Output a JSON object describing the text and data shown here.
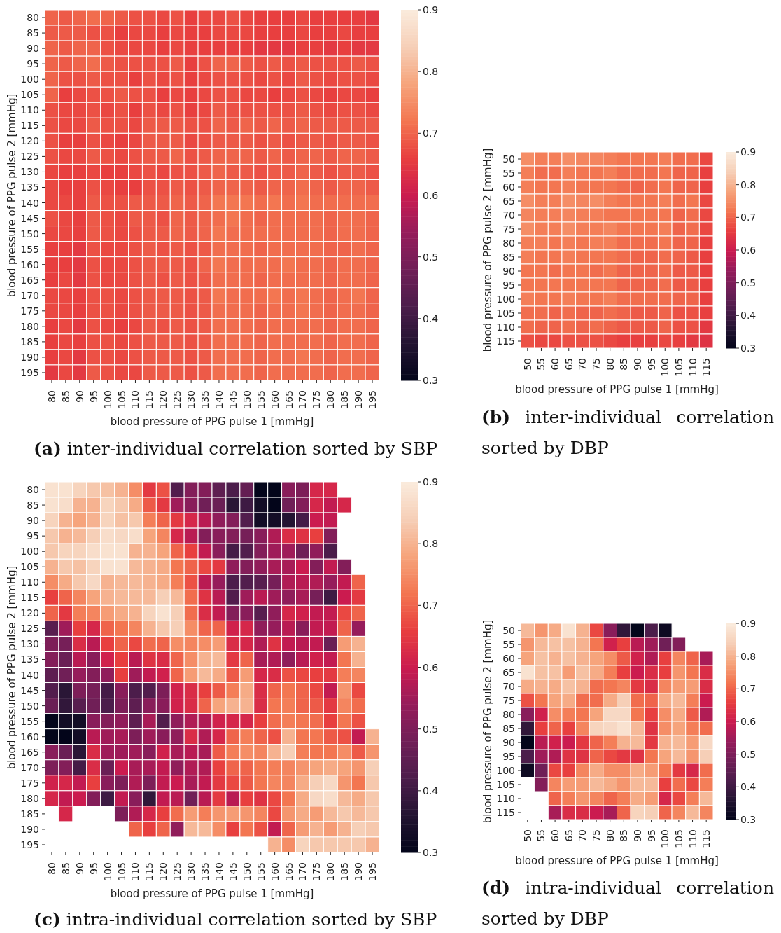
{
  "chart_data": [
    {
      "type": "heatmap",
      "title": "(a) inter-individual correlation sorted by SBP",
      "xlabel": "blood pressure of PPG pulse 1 [mmHg]",
      "ylabel": "blood pressure of PPG pulse 2 [mmHg]",
      "clim": [
        0.3,
        0.9
      ],
      "cticks": [
        0.3,
        0.4,
        0.5,
        0.6,
        0.7,
        0.8,
        0.9
      ],
      "categories": [
        "80",
        "85",
        "90",
        "95",
        "100",
        "105",
        "110",
        "115",
        "120",
        "125",
        "130",
        "135",
        "140",
        "145",
        "150",
        "155",
        "160",
        "165",
        "170",
        "175",
        "180",
        "185",
        "190",
        "195"
      ],
      "y_categories": [
        "80",
        "85",
        "90",
        "95",
        "100",
        "105",
        "110",
        "115",
        "120",
        "125",
        "130",
        "135",
        "140",
        "145",
        "150",
        "155",
        "160",
        "165",
        "170",
        "175",
        "180",
        "185",
        "190",
        "195"
      ],
      "cells": [
        [
          0.7,
          0.69,
          0.7,
          0.71,
          0.7,
          0.69,
          0.68,
          0.68,
          0.67,
          0.68,
          0.66,
          0.67,
          0.67,
          0.68,
          0.67,
          0.66,
          0.66,
          0.66,
          0.67,
          0.66,
          0.66,
          0.66,
          0.66,
          0.65
        ],
        [
          0.69,
          0.69,
          0.69,
          0.68,
          0.68,
          0.66,
          0.67,
          0.67,
          0.66,
          0.67,
          0.66,
          0.66,
          0.67,
          0.67,
          0.67,
          0.66,
          0.66,
          0.66,
          0.67,
          0.66,
          0.66,
          0.67,
          0.66,
          0.66
        ],
        [
          0.7,
          0.69,
          0.7,
          0.7,
          0.68,
          0.67,
          0.67,
          0.67,
          0.66,
          0.67,
          0.66,
          0.66,
          0.66,
          0.66,
          0.66,
          0.65,
          0.65,
          0.65,
          0.66,
          0.66,
          0.65,
          0.66,
          0.65,
          0.65
        ],
        [
          0.7,
          0.69,
          0.7,
          0.71,
          0.69,
          0.68,
          0.68,
          0.68,
          0.68,
          0.69,
          0.66,
          0.68,
          0.7,
          0.7,
          0.69,
          0.68,
          0.69,
          0.68,
          0.69,
          0.68,
          0.68,
          0.68,
          0.69,
          0.68
        ],
        [
          0.7,
          0.68,
          0.68,
          0.69,
          0.68,
          0.68,
          0.66,
          0.68,
          0.67,
          0.68,
          0.66,
          0.67,
          0.68,
          0.68,
          0.68,
          0.67,
          0.68,
          0.67,
          0.69,
          0.68,
          0.67,
          0.68,
          0.68,
          0.67
        ],
        [
          0.7,
          0.66,
          0.67,
          0.68,
          0.68,
          0.69,
          0.68,
          0.68,
          0.66,
          0.67,
          0.66,
          0.67,
          0.68,
          0.68,
          0.67,
          0.67,
          0.66,
          0.67,
          0.68,
          0.67,
          0.66,
          0.67,
          0.67,
          0.66
        ],
        [
          0.68,
          0.67,
          0.67,
          0.68,
          0.67,
          0.68,
          0.66,
          0.68,
          0.67,
          0.68,
          0.66,
          0.67,
          0.69,
          0.68,
          0.68,
          0.68,
          0.68,
          0.68,
          0.69,
          0.68,
          0.67,
          0.68,
          0.68,
          0.67
        ],
        [
          0.68,
          0.67,
          0.67,
          0.69,
          0.68,
          0.68,
          0.67,
          0.69,
          0.69,
          0.69,
          0.68,
          0.68,
          0.7,
          0.69,
          0.7,
          0.69,
          0.7,
          0.69,
          0.7,
          0.69,
          0.69,
          0.69,
          0.69,
          0.69
        ],
        [
          0.68,
          0.66,
          0.66,
          0.68,
          0.67,
          0.66,
          0.67,
          0.69,
          0.69,
          0.69,
          0.67,
          0.68,
          0.69,
          0.69,
          0.69,
          0.68,
          0.69,
          0.68,
          0.69,
          0.69,
          0.68,
          0.69,
          0.69,
          0.68
        ],
        [
          0.68,
          0.67,
          0.67,
          0.69,
          0.68,
          0.67,
          0.68,
          0.69,
          0.69,
          0.7,
          0.68,
          0.69,
          0.7,
          0.7,
          0.7,
          0.69,
          0.7,
          0.69,
          0.7,
          0.7,
          0.69,
          0.7,
          0.7,
          0.69
        ],
        [
          0.67,
          0.66,
          0.66,
          0.67,
          0.66,
          0.66,
          0.67,
          0.68,
          0.67,
          0.68,
          0.68,
          0.69,
          0.7,
          0.69,
          0.69,
          0.68,
          0.69,
          0.69,
          0.7,
          0.69,
          0.68,
          0.69,
          0.69,
          0.68
        ],
        [
          0.67,
          0.66,
          0.66,
          0.68,
          0.67,
          0.66,
          0.66,
          0.68,
          0.68,
          0.69,
          0.68,
          0.69,
          0.7,
          0.7,
          0.7,
          0.69,
          0.7,
          0.7,
          0.71,
          0.7,
          0.69,
          0.7,
          0.7,
          0.69
        ],
        [
          0.67,
          0.67,
          0.66,
          0.69,
          0.68,
          0.68,
          0.69,
          0.69,
          0.69,
          0.7,
          0.69,
          0.7,
          0.72,
          0.72,
          0.72,
          0.71,
          0.72,
          0.71,
          0.72,
          0.71,
          0.71,
          0.71,
          0.71,
          0.71
        ],
        [
          0.68,
          0.67,
          0.66,
          0.69,
          0.68,
          0.67,
          0.69,
          0.69,
          0.68,
          0.7,
          0.69,
          0.7,
          0.71,
          0.72,
          0.71,
          0.7,
          0.71,
          0.71,
          0.71,
          0.71,
          0.7,
          0.71,
          0.71,
          0.7
        ],
        [
          0.67,
          0.67,
          0.66,
          0.69,
          0.68,
          0.67,
          0.68,
          0.69,
          0.69,
          0.7,
          0.69,
          0.7,
          0.72,
          0.71,
          0.71,
          0.71,
          0.71,
          0.71,
          0.71,
          0.71,
          0.7,
          0.71,
          0.71,
          0.7
        ],
        [
          0.66,
          0.66,
          0.65,
          0.68,
          0.67,
          0.67,
          0.68,
          0.69,
          0.68,
          0.69,
          0.68,
          0.69,
          0.71,
          0.71,
          0.71,
          0.7,
          0.71,
          0.71,
          0.71,
          0.71,
          0.7,
          0.7,
          0.71,
          0.7
        ],
        [
          0.66,
          0.66,
          0.65,
          0.68,
          0.67,
          0.67,
          0.68,
          0.69,
          0.69,
          0.69,
          0.68,
          0.7,
          0.72,
          0.71,
          0.71,
          0.71,
          0.71,
          0.72,
          0.71,
          0.71,
          0.7,
          0.71,
          0.71,
          0.7
        ],
        [
          0.66,
          0.67,
          0.65,
          0.68,
          0.67,
          0.67,
          0.68,
          0.69,
          0.68,
          0.69,
          0.68,
          0.69,
          0.71,
          0.71,
          0.71,
          0.7,
          0.71,
          0.71,
          0.71,
          0.71,
          0.7,
          0.71,
          0.71,
          0.7
        ],
        [
          0.67,
          0.67,
          0.66,
          0.68,
          0.68,
          0.67,
          0.68,
          0.69,
          0.69,
          0.69,
          0.68,
          0.69,
          0.72,
          0.71,
          0.71,
          0.71,
          0.72,
          0.71,
          0.72,
          0.71,
          0.7,
          0.71,
          0.72,
          0.7
        ],
        [
          0.67,
          0.67,
          0.66,
          0.68,
          0.68,
          0.67,
          0.68,
          0.69,
          0.69,
          0.69,
          0.68,
          0.69,
          0.71,
          0.71,
          0.71,
          0.7,
          0.71,
          0.71,
          0.72,
          0.71,
          0.7,
          0.71,
          0.71,
          0.7
        ],
        [
          0.66,
          0.67,
          0.65,
          0.68,
          0.67,
          0.66,
          0.67,
          0.69,
          0.68,
          0.69,
          0.68,
          0.69,
          0.71,
          0.71,
          0.71,
          0.7,
          0.71,
          0.71,
          0.71,
          0.71,
          0.7,
          0.71,
          0.71,
          0.7
        ],
        [
          0.66,
          0.67,
          0.66,
          0.68,
          0.68,
          0.67,
          0.68,
          0.69,
          0.69,
          0.69,
          0.68,
          0.69,
          0.71,
          0.71,
          0.71,
          0.7,
          0.71,
          0.71,
          0.71,
          0.71,
          0.7,
          0.71,
          0.71,
          0.7
        ],
        [
          0.66,
          0.67,
          0.65,
          0.68,
          0.68,
          0.67,
          0.68,
          0.69,
          0.69,
          0.69,
          0.68,
          0.69,
          0.71,
          0.71,
          0.71,
          0.7,
          0.71,
          0.71,
          0.72,
          0.71,
          0.7,
          0.71,
          0.71,
          0.7
        ],
        [
          0.65,
          0.67,
          0.65,
          0.69,
          0.68,
          0.67,
          0.67,
          0.69,
          0.69,
          0.69,
          0.68,
          0.69,
          0.71,
          0.71,
          0.71,
          0.7,
          0.71,
          0.71,
          0.71,
          0.71,
          0.7,
          0.71,
          0.71,
          0.7
        ]
      ]
    },
    {
      "type": "heatmap",
      "title": "(b) inter-individual correlation sorted by DBP",
      "xlabel": "blood pressure of PPG pulse 1 [mmHg]",
      "ylabel": "blood pressure of PPG pulse 2 [mmHg]",
      "clim": [
        0.3,
        0.9
      ],
      "cticks": [
        0.3,
        0.4,
        0.5,
        0.6,
        0.7,
        0.8,
        0.9
      ],
      "categories": [
        "50",
        "55",
        "60",
        "65",
        "70",
        "75",
        "80",
        "85",
        "90",
        "95",
        "100",
        "105",
        "110",
        "115"
      ],
      "y_categories": [
        "50",
        "55",
        "60",
        "65",
        "70",
        "75",
        "80",
        "85",
        "90",
        "95",
        "100",
        "105",
        "110",
        "115"
      ],
      "cells": [
        [
          0.75,
          0.73,
          0.73,
          0.75,
          0.74,
          0.74,
          0.73,
          0.72,
          0.72,
          0.72,
          0.73,
          0.71,
          0.71,
          0.67
        ],
        [
          0.73,
          0.71,
          0.71,
          0.73,
          0.72,
          0.72,
          0.73,
          0.71,
          0.71,
          0.71,
          0.72,
          0.7,
          0.7,
          0.66
        ],
        [
          0.73,
          0.72,
          0.72,
          0.73,
          0.72,
          0.72,
          0.72,
          0.71,
          0.7,
          0.71,
          0.72,
          0.7,
          0.7,
          0.66
        ],
        [
          0.75,
          0.73,
          0.73,
          0.75,
          0.74,
          0.75,
          0.73,
          0.72,
          0.72,
          0.72,
          0.73,
          0.71,
          0.72,
          0.67
        ],
        [
          0.74,
          0.73,
          0.73,
          0.74,
          0.73,
          0.73,
          0.72,
          0.72,
          0.72,
          0.72,
          0.72,
          0.7,
          0.71,
          0.67
        ],
        [
          0.75,
          0.73,
          0.73,
          0.75,
          0.73,
          0.73,
          0.74,
          0.72,
          0.72,
          0.72,
          0.73,
          0.7,
          0.71,
          0.67
        ],
        [
          0.73,
          0.73,
          0.72,
          0.73,
          0.72,
          0.73,
          0.73,
          0.71,
          0.71,
          0.71,
          0.72,
          0.7,
          0.7,
          0.66
        ],
        [
          0.73,
          0.72,
          0.72,
          0.73,
          0.72,
          0.72,
          0.72,
          0.71,
          0.7,
          0.7,
          0.71,
          0.7,
          0.69,
          0.66
        ],
        [
          0.72,
          0.72,
          0.71,
          0.72,
          0.72,
          0.71,
          0.72,
          0.7,
          0.7,
          0.7,
          0.71,
          0.69,
          0.69,
          0.66
        ],
        [
          0.72,
          0.72,
          0.72,
          0.72,
          0.72,
          0.72,
          0.72,
          0.7,
          0.7,
          0.7,
          0.71,
          0.69,
          0.69,
          0.66
        ],
        [
          0.73,
          0.72,
          0.72,
          0.73,
          0.72,
          0.72,
          0.73,
          0.71,
          0.71,
          0.71,
          0.71,
          0.7,
          0.7,
          0.66
        ],
        [
          0.71,
          0.71,
          0.7,
          0.71,
          0.7,
          0.7,
          0.71,
          0.7,
          0.69,
          0.69,
          0.7,
          0.68,
          0.68,
          0.66
        ],
        [
          0.71,
          0.7,
          0.7,
          0.71,
          0.7,
          0.71,
          0.7,
          0.69,
          0.69,
          0.69,
          0.7,
          0.68,
          0.68,
          0.65
        ],
        [
          0.68,
          0.67,
          0.67,
          0.68,
          0.68,
          0.68,
          0.67,
          0.66,
          0.66,
          0.66,
          0.67,
          0.66,
          0.65,
          0.64
        ]
      ]
    },
    {
      "type": "heatmap",
      "title": "(c) intra-individual correlation sorted by SBP",
      "xlabel": "blood pressure of PPG pulse 1 [mmHg]",
      "ylabel": "blood pressure of PPG pulse 2 [mmHg]",
      "clim": [
        0.3,
        0.9
      ],
      "cticks": [
        0.3,
        0.4,
        0.5,
        0.6,
        0.7,
        0.8,
        0.9
      ],
      "categories": [
        "80",
        "85",
        "90",
        "95",
        "100",
        "105",
        "110",
        "115",
        "120",
        "125",
        "130",
        "135",
        "140",
        "145",
        "150",
        "155",
        "160",
        "165",
        "170",
        "175",
        "180",
        "185",
        "190",
        "195"
      ],
      "y_categories": [
        "80",
        "85",
        "90",
        "95",
        "100",
        "105",
        "110",
        "115",
        "120",
        "125",
        "130",
        "135",
        "140",
        "145",
        "150",
        "155",
        "160",
        "165",
        "170",
        "175",
        "180",
        "185",
        "190",
        "195"
      ],
      "cells": [
        [
          0.88,
          0.88,
          0.85,
          0.83,
          0.82,
          0.8,
          0.75,
          0.65,
          0.68,
          0.43,
          0.51,
          0.51,
          0.45,
          0.42,
          0.46,
          0.3,
          0.3,
          0.52,
          0.5,
          0.62,
          0.62,
          null,
          null,
          null
        ],
        [
          0.88,
          0.87,
          0.8,
          0.8,
          0.85,
          0.83,
          0.79,
          0.69,
          0.65,
          0.55,
          0.52,
          0.48,
          0.47,
          0.37,
          0.4,
          0.33,
          0.3,
          0.48,
          0.51,
          0.62,
          0.59,
          0.62,
          null,
          null
        ],
        [
          0.85,
          0.8,
          0.78,
          0.8,
          0.85,
          0.82,
          0.83,
          0.73,
          0.7,
          0.65,
          0.62,
          0.58,
          0.53,
          0.51,
          0.43,
          0.33,
          0.33,
          0.36,
          0.41,
          0.6,
          0.59,
          null,
          null,
          null
        ],
        [
          0.83,
          0.8,
          0.81,
          0.84,
          0.87,
          0.86,
          0.87,
          0.78,
          0.74,
          0.62,
          0.58,
          0.51,
          0.52,
          0.51,
          0.49,
          0.52,
          0.57,
          0.63,
          0.64,
          0.66,
          0.51,
          null,
          null,
          null
        ],
        [
          0.83,
          0.85,
          0.85,
          0.87,
          0.88,
          0.88,
          0.8,
          0.8,
          0.78,
          0.7,
          0.66,
          0.59,
          0.52,
          0.41,
          0.43,
          0.51,
          0.55,
          0.55,
          0.48,
          0.53,
          0.42,
          null,
          null,
          null
        ],
        [
          0.8,
          0.83,
          0.82,
          0.85,
          0.88,
          0.88,
          0.81,
          0.8,
          0.79,
          0.72,
          0.7,
          0.67,
          0.65,
          0.53,
          0.51,
          0.53,
          0.56,
          0.56,
          0.6,
          0.51,
          0.59,
          0.51,
          null,
          null
        ],
        [
          0.75,
          0.79,
          0.83,
          0.86,
          0.8,
          0.81,
          0.81,
          0.8,
          0.79,
          0.73,
          0.68,
          0.58,
          0.54,
          0.42,
          0.43,
          0.44,
          0.49,
          0.57,
          0.58,
          0.57,
          0.54,
          0.59,
          0.7,
          null
        ],
        [
          0.66,
          0.7,
          0.74,
          0.78,
          0.8,
          0.81,
          0.81,
          0.81,
          0.84,
          0.81,
          0.71,
          0.64,
          0.58,
          0.43,
          0.55,
          0.58,
          0.55,
          0.53,
          0.56,
          0.49,
          0.4,
          0.6,
          0.65,
          null
        ],
        [
          0.7,
          0.65,
          0.73,
          0.74,
          0.77,
          0.79,
          0.8,
          0.85,
          0.88,
          0.84,
          0.71,
          0.63,
          0.59,
          0.51,
          0.52,
          0.44,
          0.53,
          0.62,
          0.61,
          0.59,
          0.59,
          0.67,
          0.7,
          null
        ],
        [
          0.44,
          0.55,
          0.66,
          0.62,
          0.7,
          0.72,
          0.74,
          0.8,
          0.83,
          0.84,
          0.75,
          0.7,
          0.7,
          0.61,
          0.62,
          0.53,
          0.54,
          0.58,
          0.52,
          0.59,
          0.59,
          0.7,
          0.54,
          null
        ],
        [
          0.5,
          0.49,
          0.63,
          0.58,
          0.66,
          0.7,
          0.67,
          0.71,
          0.7,
          0.75,
          0.74,
          0.75,
          0.77,
          0.63,
          0.62,
          0.57,
          0.64,
          0.59,
          0.58,
          0.59,
          0.47,
          0.77,
          0.8,
          null
        ],
        [
          0.51,
          0.47,
          0.58,
          0.52,
          0.61,
          0.66,
          0.58,
          0.64,
          0.63,
          0.7,
          0.75,
          0.8,
          0.81,
          0.65,
          0.7,
          0.56,
          0.57,
          0.53,
          0.58,
          0.61,
          0.59,
          0.72,
          0.8,
          null
        ],
        [
          0.45,
          0.48,
          0.54,
          0.51,
          0.53,
          0.66,
          0.55,
          0.59,
          0.61,
          0.7,
          0.77,
          0.81,
          0.79,
          0.69,
          0.77,
          0.62,
          0.63,
          0.68,
          0.67,
          0.66,
          0.65,
          0.73,
          0.74,
          null
        ],
        [
          0.43,
          0.37,
          0.5,
          0.49,
          0.41,
          0.52,
          0.42,
          0.43,
          0.5,
          0.61,
          0.63,
          0.66,
          0.69,
          0.73,
          0.79,
          0.63,
          0.7,
          0.72,
          0.7,
          0.67,
          0.59,
          0.76,
          0.67,
          null
        ],
        [
          0.47,
          0.38,
          0.44,
          0.48,
          0.42,
          0.5,
          0.45,
          0.52,
          0.52,
          0.61,
          0.63,
          0.7,
          0.78,
          0.8,
          0.8,
          0.63,
          0.72,
          0.73,
          0.7,
          0.69,
          0.65,
          0.74,
          0.71,
          null
        ],
        [
          0.3,
          0.33,
          0.33,
          0.52,
          0.51,
          0.53,
          0.45,
          0.56,
          0.43,
          0.53,
          0.57,
          0.57,
          0.61,
          0.62,
          0.62,
          0.66,
          0.71,
          0.73,
          0.72,
          0.71,
          0.66,
          0.72,
          0.68,
          null
        ],
        [
          0.3,
          0.3,
          0.33,
          0.58,
          0.55,
          0.56,
          0.5,
          0.55,
          0.52,
          0.53,
          0.63,
          0.57,
          0.62,
          0.7,
          0.73,
          0.7,
          0.68,
          0.8,
          0.72,
          0.72,
          0.69,
          0.68,
          0.59,
          0.8
        ],
        [
          0.52,
          0.47,
          0.37,
          0.63,
          0.55,
          0.55,
          0.55,
          0.52,
          0.61,
          0.56,
          0.58,
          0.56,
          0.69,
          0.73,
          0.75,
          0.74,
          0.8,
          0.84,
          0.73,
          0.72,
          0.72,
          0.75,
          0.69,
          0.76
        ],
        [
          0.5,
          0.51,
          0.41,
          0.63,
          0.47,
          0.6,
          0.56,
          0.56,
          0.59,
          0.53,
          0.57,
          0.57,
          0.66,
          0.7,
          0.7,
          0.72,
          0.73,
          0.74,
          0.76,
          0.78,
          0.79,
          0.78,
          0.76,
          0.84
        ],
        [
          0.61,
          0.62,
          0.59,
          0.66,
          0.52,
          0.5,
          0.57,
          0.5,
          0.59,
          0.6,
          0.56,
          0.59,
          0.65,
          0.67,
          0.69,
          0.72,
          0.74,
          0.74,
          0.79,
          0.84,
          0.86,
          0.76,
          0.72,
          0.83
        ],
        [
          0.62,
          0.59,
          0.6,
          0.51,
          0.4,
          0.59,
          0.52,
          0.38,
          0.59,
          0.58,
          0.48,
          0.58,
          0.65,
          0.58,
          0.66,
          0.64,
          0.67,
          0.72,
          0.79,
          0.86,
          0.87,
          0.81,
          0.79,
          0.83
        ],
        [
          null,
          0.62,
          null,
          null,
          null,
          0.5,
          0.57,
          0.62,
          0.66,
          0.71,
          0.77,
          0.73,
          0.76,
          0.77,
          0.76,
          0.74,
          0.67,
          0.76,
          0.79,
          0.77,
          0.81,
          0.83,
          0.81,
          0.83
        ],
        [
          null,
          null,
          null,
          null,
          null,
          null,
          0.7,
          0.66,
          0.7,
          0.53,
          0.81,
          0.81,
          0.75,
          0.66,
          0.72,
          0.68,
          0.59,
          0.7,
          0.77,
          0.8,
          0.77,
          0.8,
          0.84,
          0.83
        ],
        [
          null,
          null,
          null,
          null,
          null,
          null,
          null,
          null,
          null,
          null,
          null,
          null,
          null,
          null,
          null,
          null,
          0.8,
          0.75,
          0.85,
          0.83,
          0.83,
          0.83,
          0.83,
          0.8
        ]
      ]
    },
    {
      "type": "heatmap",
      "title": "(d) intra-individual correlation sorted by DBP",
      "xlabel": "blood pressure of PPG pulse 1 [mmHg]",
      "ylabel": "blood pressure of PPG pulse 2 [mmHg]",
      "clim": [
        0.3,
        0.9
      ],
      "cticks": [
        0.3,
        0.4,
        0.5,
        0.6,
        0.7,
        0.8,
        0.9
      ],
      "categories": [
        "50",
        "55",
        "60",
        "65",
        "70",
        "75",
        "80",
        "85",
        "90",
        "95",
        "100",
        "105",
        "110",
        "115"
      ],
      "y_categories": [
        "50",
        "55",
        "60",
        "65",
        "70",
        "75",
        "80",
        "85",
        "90",
        "95",
        "100",
        "105",
        "110",
        "115"
      ],
      "cells": [
        [
          0.81,
          0.76,
          0.79,
          0.88,
          0.8,
          0.67,
          0.52,
          0.38,
          0.3,
          0.42,
          0.32,
          null,
          null,
          null
        ],
        [
          0.76,
          0.81,
          0.82,
          0.82,
          0.8,
          0.72,
          0.61,
          0.66,
          0.58,
          0.55,
          0.48,
          0.51,
          null,
          null
        ],
        [
          0.78,
          0.82,
          0.8,
          0.82,
          0.8,
          0.78,
          0.75,
          0.69,
          0.61,
          0.57,
          0.66,
          0.74,
          0.7,
          0.56
        ],
        [
          0.88,
          0.82,
          0.82,
          0.77,
          0.82,
          0.79,
          0.73,
          0.66,
          0.6,
          0.63,
          0.66,
          0.76,
          0.72,
          0.63
        ],
        [
          0.79,
          0.8,
          0.79,
          0.82,
          0.8,
          0.71,
          0.72,
          0.74,
          0.65,
          0.63,
          0.74,
          0.77,
          0.77,
          0.63
        ],
        [
          0.68,
          0.72,
          0.78,
          0.79,
          0.71,
          0.71,
          0.79,
          0.84,
          0.71,
          0.7,
          0.79,
          0.81,
          0.73,
          0.6
        ],
        [
          0.52,
          0.61,
          0.75,
          0.73,
          0.72,
          0.78,
          0.86,
          0.86,
          0.72,
          0.66,
          0.75,
          0.79,
          0.69,
          0.57
        ],
        [
          0.38,
          0.66,
          0.7,
          0.66,
          0.74,
          0.85,
          0.86,
          0.88,
          0.81,
          0.64,
          0.75,
          0.78,
          0.73,
          0.71
        ],
        [
          0.3,
          0.58,
          0.61,
          0.6,
          0.65,
          0.7,
          0.73,
          0.8,
          0.81,
          0.65,
          0.8,
          0.81,
          0.77,
          0.86
        ],
        [
          0.42,
          0.55,
          0.57,
          0.64,
          0.64,
          0.7,
          0.67,
          0.65,
          0.64,
          0.72,
          0.78,
          0.81,
          0.76,
          0.84
        ],
        [
          0.32,
          0.48,
          0.67,
          0.66,
          0.74,
          0.79,
          0.75,
          0.75,
          0.79,
          0.77,
          0.72,
          0.65,
          0.62,
          0.71
        ],
        [
          null,
          0.51,
          0.74,
          0.77,
          0.77,
          0.81,
          0.79,
          0.76,
          0.81,
          0.81,
          0.66,
          0.71,
          0.67,
          0.73
        ],
        [
          null,
          null,
          0.7,
          0.73,
          0.76,
          0.74,
          0.7,
          0.73,
          0.79,
          0.77,
          0.62,
          0.67,
          0.73,
          0.81
        ],
        [
          null,
          null,
          0.56,
          0.63,
          0.63,
          0.6,
          0.56,
          0.7,
          0.85,
          0.84,
          0.7,
          0.74,
          0.81,
          0.74
        ]
      ]
    }
  ]
}
